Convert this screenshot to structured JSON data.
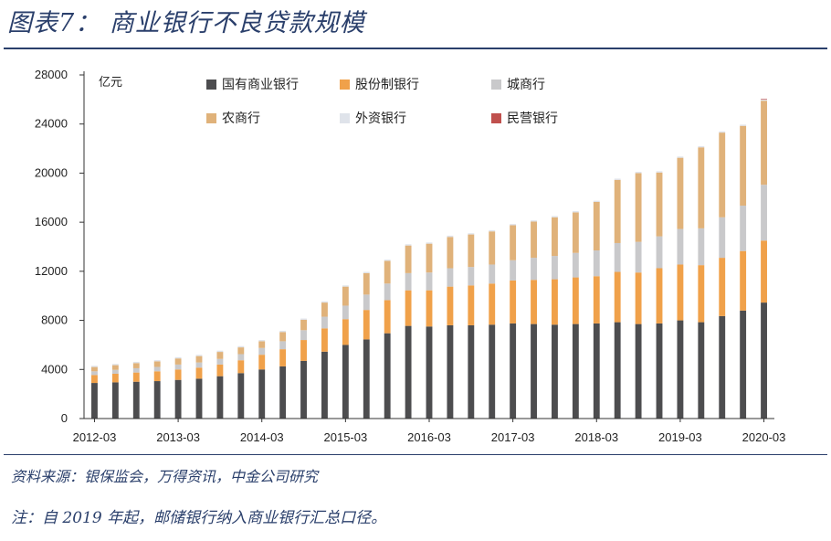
{
  "page": {
    "title": "图表7：  商业银行不良贷款规模",
    "source": "资料来源：银保监会，万得资讯，中金公司研究",
    "note": "注：自 2019 年起，邮储银行纳入商业银行汇总口径。"
  },
  "colors": {
    "state_owned": "#4d4d4f",
    "joint_stock": "#f0a14a",
    "city": "#c9c9cb",
    "rural": "#e0b27a",
    "foreign": "#dfe3ea",
    "private": "#c0504d"
  },
  "chart_data": {
    "type": "bar",
    "stacked": true,
    "unit_label": "亿元",
    "ylim": [
      0,
      28000
    ],
    "yticks": [
      0,
      4000,
      8000,
      12000,
      16000,
      20000,
      24000,
      28000
    ],
    "xtick_labels": [
      "2012-03",
      "2013-03",
      "2014-03",
      "2015-03",
      "2016-03",
      "2017-03",
      "2018-03",
      "2019-03",
      "2020-03"
    ],
    "legend_position": "top",
    "categories": [
      "2012-03",
      "2012-06",
      "2012-09",
      "2012-12",
      "2013-03",
      "2013-06",
      "2013-09",
      "2013-12",
      "2014-03",
      "2014-06",
      "2014-09",
      "2014-12",
      "2015-03",
      "2015-06",
      "2015-09",
      "2015-12",
      "2016-03",
      "2016-06",
      "2016-09",
      "2016-12",
      "2017-03",
      "2017-06",
      "2017-09",
      "2017-12",
      "2018-03",
      "2018-06",
      "2018-09",
      "2018-12",
      "2019-03",
      "2019-06",
      "2019-09",
      "2019-12",
      "2020-03"
    ],
    "series": [
      {
        "name": "国有商业银行",
        "values": [
          2900,
          2950,
          3000,
          3050,
          3150,
          3250,
          3450,
          3700,
          4000,
          4250,
          4700,
          5450,
          6000,
          6450,
          6950,
          7550,
          7500,
          7600,
          7600,
          7650,
          7750,
          7700,
          7650,
          7700,
          7750,
          7850,
          7700,
          7750,
          8000,
          7850,
          8350,
          8800,
          9450
        ]
      },
      {
        "name": "股份制银行",
        "values": [
          650,
          700,
          750,
          800,
          850,
          900,
          950,
          1050,
          1200,
          1400,
          1700,
          1900,
          2100,
          2400,
          2700,
          2900,
          2950,
          3150,
          3250,
          3350,
          3500,
          3600,
          3700,
          3800,
          3850,
          4100,
          4200,
          4500,
          4550,
          4650,
          4750,
          4850,
          5050
        ]
      },
      {
        "name": "城商行",
        "values": [
          300,
          320,
          350,
          360,
          400,
          420,
          460,
          500,
          550,
          650,
          800,
          950,
          1100,
          1250,
          1350,
          1400,
          1450,
          1500,
          1500,
          1550,
          1650,
          1800,
          1900,
          2000,
          2100,
          2350,
          2500,
          2600,
          2900,
          3000,
          3300,
          3700,
          4550
        ]
      },
      {
        "name": "农商行",
        "values": [
          350,
          380,
          420,
          450,
          500,
          520,
          570,
          550,
          550,
          750,
          850,
          1150,
          1550,
          1750,
          1850,
          2250,
          2350,
          2550,
          2650,
          2700,
          2850,
          2950,
          3150,
          3300,
          3950,
          5150,
          5600,
          5200,
          5800,
          6600,
          6900,
          6500,
          6850
        ]
      },
      {
        "name": "外资银行",
        "values": [
          100,
          100,
          100,
          100,
          100,
          100,
          100,
          100,
          100,
          100,
          100,
          100,
          100,
          100,
          100,
          100,
          100,
          100,
          100,
          100,
          100,
          100,
          100,
          100,
          100,
          100,
          100,
          100,
          100,
          100,
          100,
          100,
          100
        ]
      },
      {
        "name": "民营银行",
        "values": [
          0,
          0,
          0,
          0,
          0,
          0,
          0,
          0,
          0,
          0,
          0,
          0,
          0,
          0,
          0,
          0,
          0,
          0,
          0,
          0,
          0,
          0,
          0,
          0,
          0,
          0,
          0,
          0,
          0,
          0,
          0,
          0,
          50
        ]
      }
    ]
  }
}
